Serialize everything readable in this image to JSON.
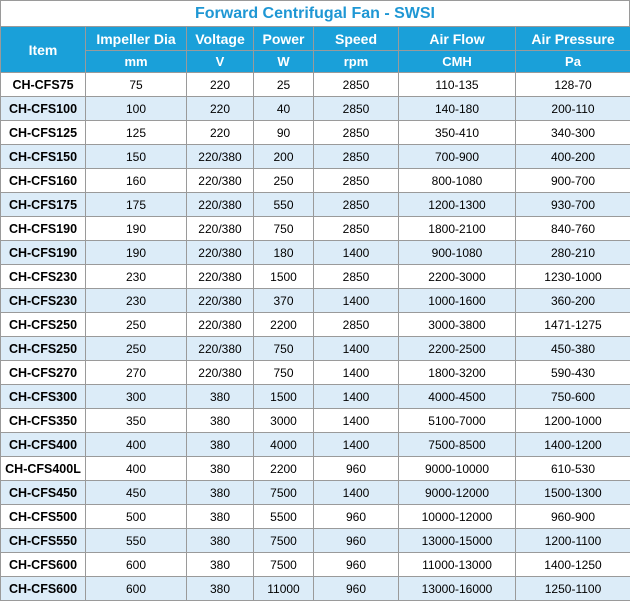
{
  "title": "Forward Centrifugal Fan - SWSI",
  "headers": {
    "item": "Item",
    "impeller": "Impeller Dia",
    "impeller_unit": "mm",
    "voltage": "Voltage",
    "voltage_unit": "V",
    "power": "Power",
    "power_unit": "W",
    "speed": "Speed",
    "speed_unit": "rpm",
    "airflow": "Air Flow",
    "airflow_unit": "CMH",
    "pressure": "Air Pressure",
    "pressure_unit": "Pa"
  },
  "rows": [
    [
      "CH-CFS75",
      "75",
      "220",
      "25",
      "2850",
      "110-135",
      "128-70"
    ],
    [
      "CH-CFS100",
      "100",
      "220",
      "40",
      "2850",
      "140-180",
      "200-110"
    ],
    [
      "CH-CFS125",
      "125",
      "220",
      "90",
      "2850",
      "350-410",
      "340-300"
    ],
    [
      "CH-CFS150",
      "150",
      "220/380",
      "200",
      "2850",
      "700-900",
      "400-200"
    ],
    [
      "CH-CFS160",
      "160",
      "220/380",
      "250",
      "2850",
      "800-1080",
      "900-700"
    ],
    [
      "CH-CFS175",
      "175",
      "220/380",
      "550",
      "2850",
      "1200-1300",
      "930-700"
    ],
    [
      "CH-CFS190",
      "190",
      "220/380",
      "750",
      "2850",
      "1800-2100",
      "840-760"
    ],
    [
      "CH-CFS190",
      "190",
      "220/380",
      "180",
      "1400",
      "900-1080",
      "280-210"
    ],
    [
      "CH-CFS230",
      "230",
      "220/380",
      "1500",
      "2850",
      "2200-3000",
      "1230-1000"
    ],
    [
      "CH-CFS230",
      "230",
      "220/380",
      "370",
      "1400",
      "1000-1600",
      "360-200"
    ],
    [
      "CH-CFS250",
      "250",
      "220/380",
      "2200",
      "2850",
      "3000-3800",
      "1471-1275"
    ],
    [
      "CH-CFS250",
      "250",
      "220/380",
      "750",
      "1400",
      "2200-2500",
      "450-380"
    ],
    [
      "CH-CFS270",
      "270",
      "220/380",
      "750",
      "1400",
      "1800-3200",
      "590-430"
    ],
    [
      "CH-CFS300",
      "300",
      "380",
      "1500",
      "1400",
      "4000-4500",
      "750-600"
    ],
    [
      "CH-CFS350",
      "350",
      "380",
      "3000",
      "1400",
      "5100-7000",
      "1200-1000"
    ],
    [
      "CH-CFS400",
      "400",
      "380",
      "4000",
      "1400",
      "7500-8500",
      "1400-1200"
    ],
    [
      "CH-CFS400L",
      "400",
      "380",
      "2200",
      "960",
      "9000-10000",
      "610-530"
    ],
    [
      "CH-CFS450",
      "450",
      "380",
      "7500",
      "1400",
      "9000-12000",
      "1500-1300"
    ],
    [
      "CH-CFS500",
      "500",
      "380",
      "5500",
      "960",
      "10000-12000",
      "960-900"
    ],
    [
      "CH-CFS550",
      "550",
      "380",
      "7500",
      "960",
      "13000-15000",
      "1200-1100"
    ],
    [
      "CH-CFS600",
      "600",
      "380",
      "7500",
      "960",
      "11000-13000",
      "1400-1250"
    ],
    [
      "CH-CFS600",
      "600",
      "380",
      "11000",
      "960",
      "13000-16000",
      "1250-1100"
    ]
  ]
}
